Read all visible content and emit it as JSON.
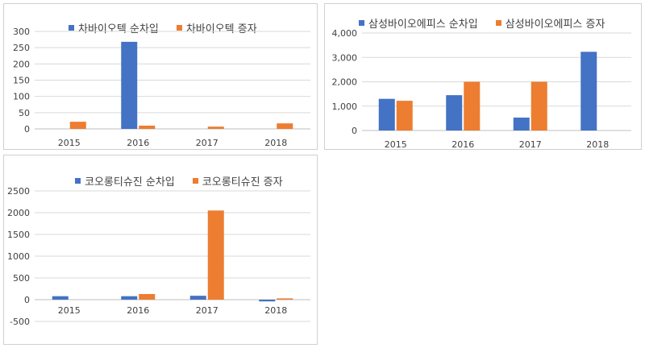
{
  "chart_data": [
    {
      "type": "bar",
      "categories": [
        "2015",
        "2016",
        "2017",
        "2018"
      ],
      "series": [
        {
          "name": "차바이오텍 순차입",
          "color": "#4472c4",
          "values": [
            0,
            268,
            0,
            0
          ]
        },
        {
          "name": "차바이오텍 증자",
          "color": "#ed7d31",
          "values": [
            22,
            10,
            7,
            17
          ]
        }
      ],
      "ylim": [
        0,
        300
      ],
      "yticks": [
        "0",
        "50",
        "100",
        "150",
        "200",
        "250",
        "300"
      ],
      "grid": true,
      "legend": "top"
    },
    {
      "type": "bar",
      "categories": [
        "2015",
        "2016",
        "2017",
        "2018"
      ],
      "series": [
        {
          "name": "삼성바이오에피스 순차입",
          "color": "#4472c4",
          "values": [
            1300,
            1450,
            530,
            3230
          ]
        },
        {
          "name": "삼성바이오에피스 증자",
          "color": "#ed7d31",
          "values": [
            1220,
            2000,
            2000,
            0
          ]
        }
      ],
      "ylim": [
        0,
        4000
      ],
      "yticks": [
        "0",
        "1,000",
        "2,000",
        "3,000",
        "4,000"
      ],
      "grid": true,
      "legend": "top"
    },
    {
      "type": "bar",
      "categories": [
        "2015",
        "2016",
        "2017",
        "2018"
      ],
      "series": [
        {
          "name": "코오롱티슈진 순차입",
          "color": "#4472c4",
          "values": [
            80,
            80,
            90,
            -40
          ]
        },
        {
          "name": "코오롱티슈진 증자",
          "color": "#ed7d31",
          "values": [
            0,
            130,
            2050,
            30
          ]
        }
      ],
      "ylim": [
        -500,
        2500
      ],
      "yticks": [
        "-500",
        "0",
        "500",
        "1000",
        "1500",
        "2000",
        "2500"
      ],
      "grid": true,
      "legend": "top"
    }
  ]
}
